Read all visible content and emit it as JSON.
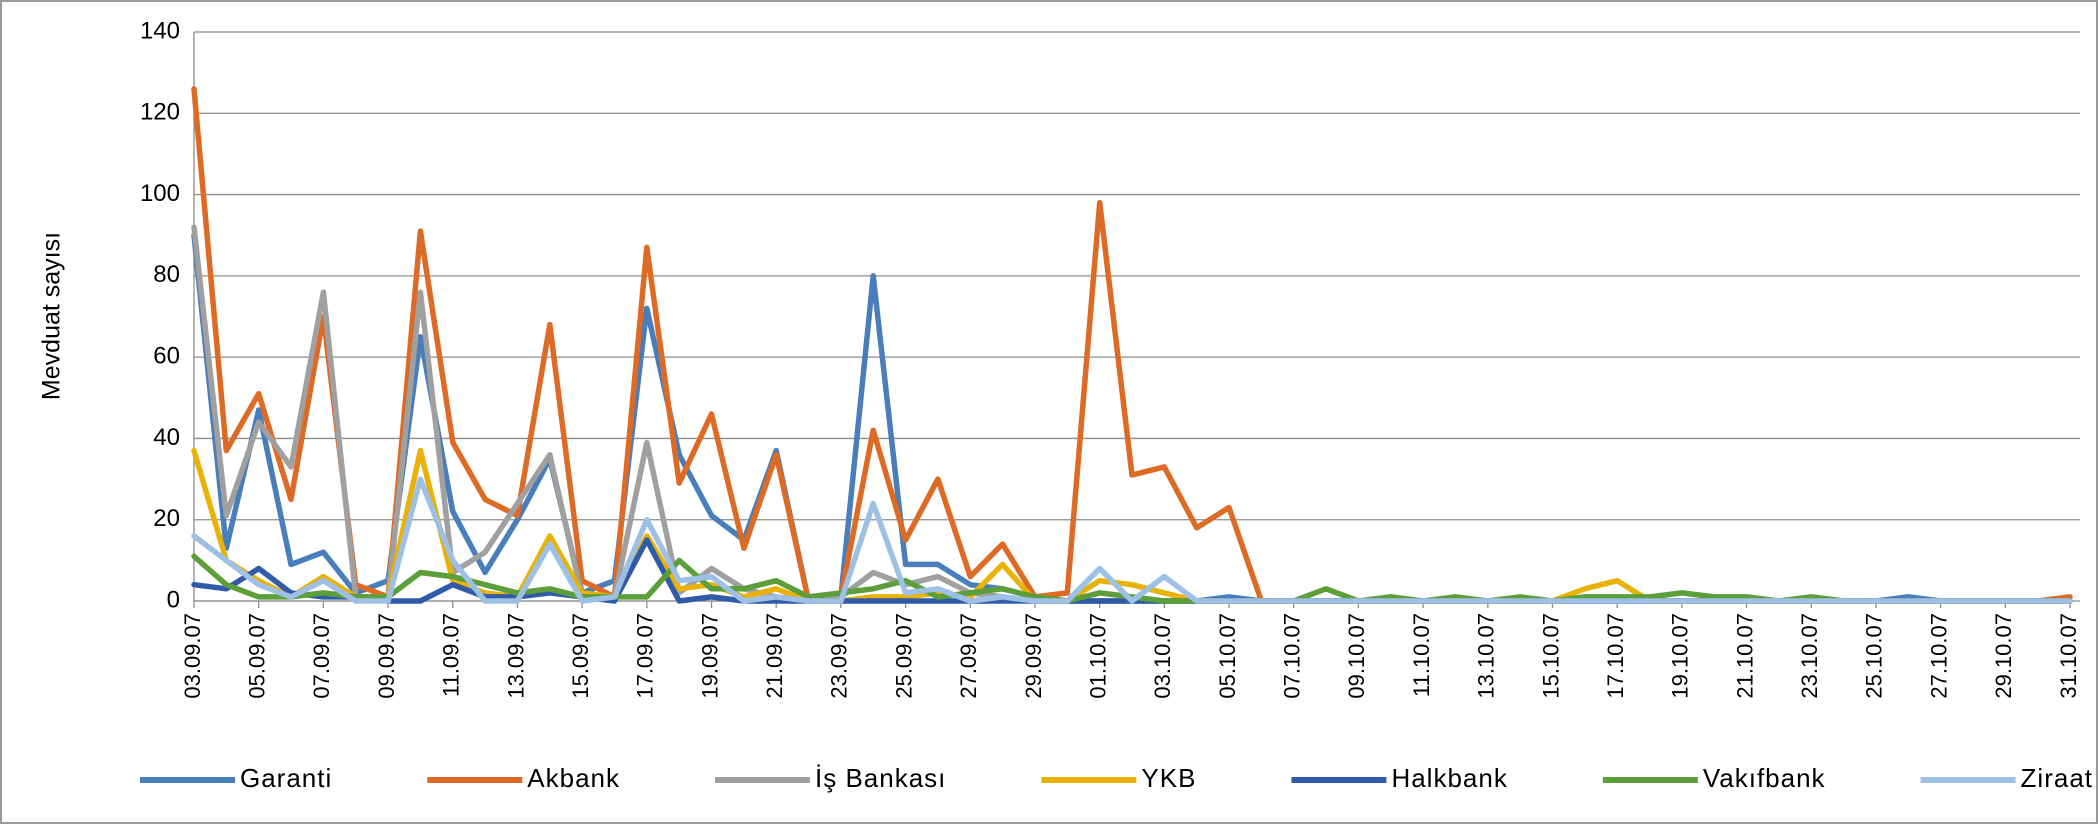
{
  "chart_data": {
    "type": "line",
    "y_label": "Mevduat sayısı",
    "categories": [
      "03.09.07",
      null,
      "05.09.07",
      null,
      "07.09.07",
      null,
      "09.09.07",
      null,
      "11.09.07",
      null,
      "13.09.07",
      null,
      "15.09.07",
      null,
      "17.09.07",
      null,
      "19.09.07",
      null,
      "21.09.07",
      null,
      "23.09.07",
      null,
      "25.09.07",
      null,
      "27.09.07",
      null,
      "29.09.07",
      null,
      "01.10.07",
      null,
      "03.10.07",
      null,
      "05.10.07",
      null,
      "07.10.07",
      null,
      "09.10.07",
      null,
      "11.10.07",
      null,
      "13.10.07",
      null,
      "15.10.07",
      null,
      "17.10.07",
      null,
      "19.10.07",
      null,
      "21.10.07",
      null,
      "23.10.07",
      null,
      "25.10.07",
      null,
      "27.10.07",
      null,
      "29.10.07",
      null,
      "31.10.07"
    ],
    "ylim": [
      0,
      140
    ],
    "yticks": [
      0,
      20,
      40,
      60,
      80,
      100,
      120,
      140
    ],
    "grid": true,
    "legend": "bottom",
    "series": [
      {
        "name": "Garanti",
        "color": "#4a7ebb",
        "values": [
          90,
          13,
          47,
          9,
          12,
          2,
          5,
          65,
          22,
          7,
          20,
          35,
          2,
          5,
          72,
          36,
          21,
          15,
          37,
          0,
          1,
          80,
          9,
          9,
          4,
          3,
          1,
          0,
          0,
          0,
          0,
          0,
          1,
          0,
          0,
          0,
          0,
          0,
          0,
          0,
          0,
          0,
          0,
          0,
          0,
          0,
          0,
          0,
          0,
          0,
          0,
          0,
          0,
          1,
          0,
          0,
          0,
          0,
          0
        ]
      },
      {
        "name": "Akbank",
        "color": "#dd6b25",
        "values": [
          126,
          37,
          51,
          25,
          70,
          4,
          1,
          91,
          39,
          25,
          21,
          68,
          5,
          1,
          87,
          29,
          46,
          13,
          36,
          0,
          1,
          42,
          15,
          30,
          6,
          14,
          1,
          2,
          98,
          31,
          33,
          18,
          23,
          0,
          0,
          0,
          0,
          0,
          0,
          0,
          0,
          0,
          0,
          0,
          0,
          0,
          0,
          0,
          0,
          0,
          0,
          0,
          0,
          0,
          0,
          0,
          0,
          0,
          1
        ]
      },
      {
        "name": "İş Bankası",
        "color": "#a0a0a0",
        "values": [
          92,
          21,
          44,
          33,
          76,
          1,
          1,
          76,
          7,
          12,
          24,
          36,
          1,
          1,
          39,
          2,
          8,
          3,
          1,
          0,
          1,
          7,
          4,
          6,
          2,
          1,
          0,
          0,
          0,
          0,
          0,
          0,
          0,
          0,
          0,
          0,
          0,
          0,
          0,
          0,
          0,
          0,
          0,
          0,
          0,
          0,
          0,
          0,
          0,
          0,
          0,
          0,
          0,
          0,
          0,
          0,
          0,
          0,
          0
        ]
      },
      {
        "name": "YKB",
        "color": "#e9b208",
        "values": [
          37,
          10,
          5,
          1,
          6,
          1,
          1,
          37,
          5,
          2,
          1,
          16,
          2,
          1,
          16,
          3,
          4,
          1,
          3,
          0,
          0,
          1,
          1,
          2,
          1,
          9,
          0,
          0,
          5,
          4,
          2,
          0,
          0,
          0,
          0,
          0,
          0,
          0,
          0,
          0,
          0,
          0,
          0,
          3,
          5,
          0,
          0,
          0,
          0,
          0,
          0,
          0,
          0,
          0,
          0,
          0,
          0,
          0,
          0
        ]
      },
      {
        "name": "Halkbank",
        "color": "#2f5ba9",
        "values": [
          4,
          3,
          8,
          2,
          1,
          1,
          0,
          0,
          4,
          1,
          1,
          2,
          1,
          0,
          15,
          0,
          1,
          0,
          0,
          0,
          0,
          0,
          0,
          0,
          0,
          0,
          0,
          0,
          0,
          0,
          0,
          0,
          0,
          0,
          0,
          0,
          0,
          0,
          0,
          0,
          0,
          0,
          0,
          0,
          0,
          0,
          0,
          0,
          0,
          0,
          0,
          0,
          0,
          0,
          0,
          0,
          0,
          0,
          0
        ]
      },
      {
        "name": "Vakıfbank",
        "color": "#5b9e3a",
        "values": [
          11,
          4,
          1,
          1,
          2,
          1,
          1,
          7,
          6,
          4,
          2,
          3,
          1,
          1,
          1,
          10,
          3,
          3,
          5,
          1,
          2,
          3,
          5,
          1,
          2,
          3,
          1,
          0,
          2,
          1,
          0,
          0,
          0,
          0,
          0,
          3,
          0,
          1,
          0,
          1,
          0,
          1,
          0,
          1,
          1,
          1,
          2,
          1,
          1,
          0,
          1,
          0,
          0,
          0,
          0,
          0,
          0,
          0,
          0
        ]
      },
      {
        "name": "Ziraat",
        "color": "#9dc0e4",
        "values": [
          16,
          10,
          4,
          1,
          5,
          0,
          0,
          30,
          10,
          0,
          0,
          14,
          0,
          1,
          20,
          5,
          6,
          0,
          1,
          0,
          0,
          24,
          2,
          3,
          0,
          1,
          0,
          0,
          8,
          0,
          6,
          0,
          0,
          0,
          0,
          0,
          0,
          0,
          0,
          0,
          0,
          0,
          0,
          0,
          0,
          0,
          0,
          0,
          0,
          0,
          0,
          0,
          0,
          0,
          0,
          0,
          0,
          0,
          0
        ]
      }
    ]
  }
}
